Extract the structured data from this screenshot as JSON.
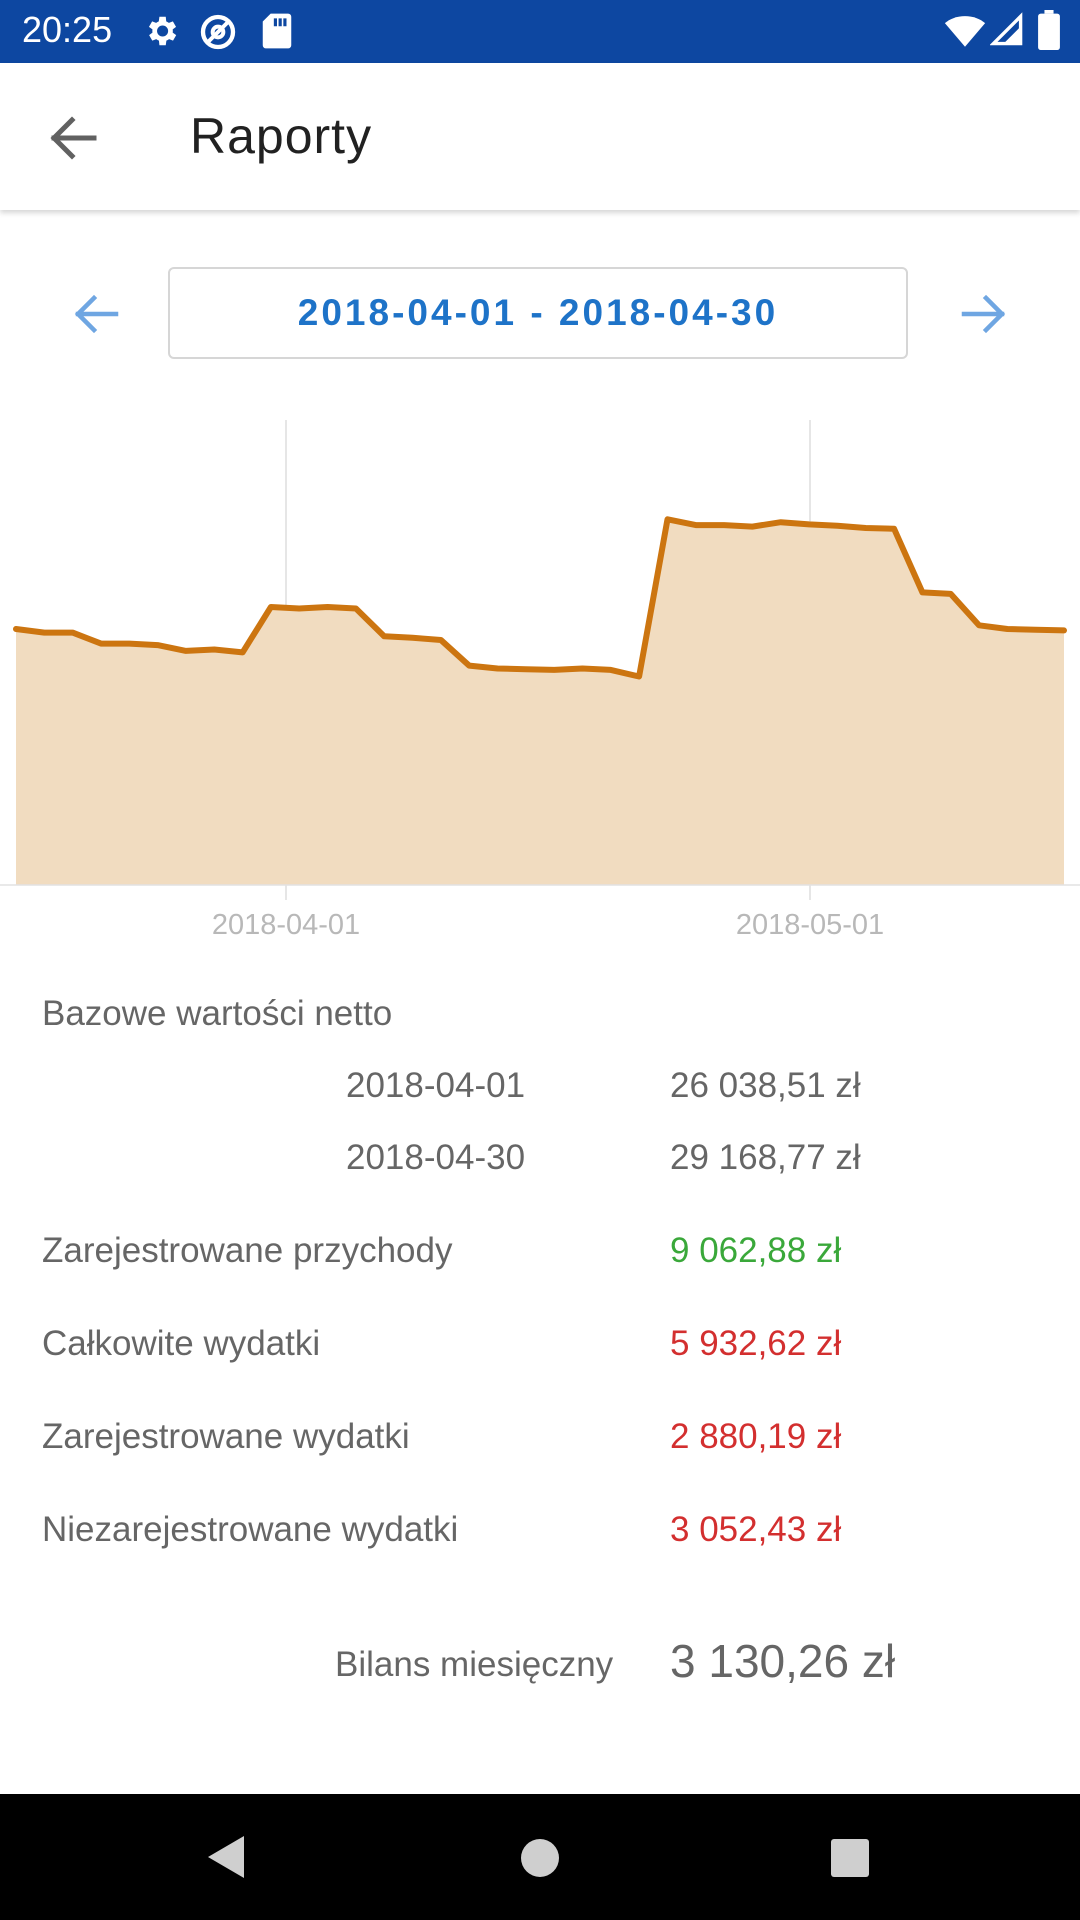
{
  "status_bar": {
    "time": "20:25",
    "left_icons": [
      "gear-icon",
      "at-sign-icon",
      "sd-card-icon"
    ],
    "right_icons": [
      "wifi-icon",
      "signal-icon",
      "battery-icon"
    ],
    "bg_color": "#0d47a1"
  },
  "app_bar": {
    "title": "Raporty",
    "back_icon": "arrow-back-icon"
  },
  "range": {
    "label": "2018-04-01 - 2018-04-30",
    "prev_icon": "arrow-left-icon",
    "next_icon": "arrow-right-icon",
    "accent_color": "#1e73c8"
  },
  "chart_data": {
    "type": "area",
    "line_color": "#cc7510",
    "fill_color": "#f1dcc0",
    "x_tick_labels": [
      "2018-04-01",
      "2018-05-01"
    ],
    "grid": "vertical lines at tick dates",
    "series": [
      {
        "values": [
          26100,
          26050,
          26050,
          25900,
          25900,
          25880,
          25800,
          25820,
          25780,
          26400,
          26380,
          26400,
          26380,
          26000,
          25980,
          25950,
          25600,
          25560,
          25550,
          25540,
          25560,
          25540,
          25450,
          27600,
          27520,
          27520,
          27500,
          27560,
          27530,
          27510,
          27480,
          27470,
          26600,
          26580,
          26150,
          26100,
          26090,
          26080
        ]
      }
    ]
  },
  "stats": {
    "base_heading": "Bazowe wartości netto",
    "base_rows": [
      {
        "date": "2018-04-01",
        "value": "26 038,51 zł"
      },
      {
        "date": "2018-04-30",
        "value": "29 168,77 zł"
      }
    ],
    "income_label": "Zarejestrowane przychody",
    "income_value": "9 062,88 zł",
    "total_expenses_label": "Całkowite wydatki",
    "total_expenses_value": "5 932,62 zł",
    "registered_expenses_label": "Zarejestrowane wydatki",
    "registered_expenses_value": "2 880,19 zł",
    "unregistered_expenses_label": "Niezarejestrowane wydatki",
    "unregistered_expenses_value": "3 052,43 zł",
    "balance_label": "Bilans miesięczny",
    "balance_value": "3 130,26 zł",
    "positive_color": "#3aa83a",
    "negative_color": "#d32f2f"
  },
  "nav_bar": {
    "icons": [
      "nav-back-icon",
      "nav-home-icon",
      "nav-recents-icon"
    ]
  }
}
